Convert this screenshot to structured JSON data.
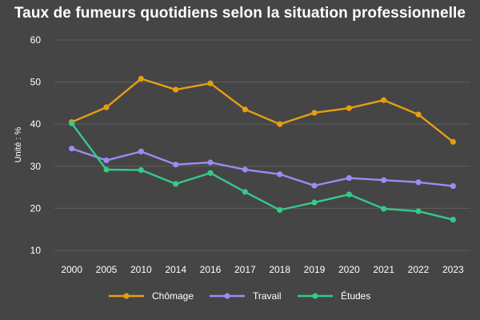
{
  "chart_data": {
    "type": "line",
    "title": "Taux de fumeurs quotidiens selon la situation professionnelle",
    "ylabel": "Unité : %",
    "xlabel": "",
    "categories": [
      "2000",
      "2005",
      "2010",
      "2014",
      "2016",
      "2017",
      "2018",
      "2019",
      "2020",
      "2021",
      "2022",
      "2023"
    ],
    "ylim": [
      10,
      60
    ],
    "yticks": [
      10,
      20,
      30,
      40,
      50,
      60
    ],
    "grid": true,
    "legend_position": "bottom",
    "series": [
      {
        "name": "Chômage",
        "color": "#e69f12",
        "values": [
          40.5,
          44.0,
          50.8,
          48.2,
          49.7,
          43.5,
          40.0,
          42.7,
          43.8,
          45.7,
          42.3,
          35.8
        ]
      },
      {
        "name": "Travail",
        "color": "#9b8cf2",
        "values": [
          34.2,
          31.4,
          33.5,
          30.4,
          30.9,
          29.2,
          28.1,
          25.4,
          27.2,
          26.7,
          26.2,
          25.3
        ]
      },
      {
        "name": "Études",
        "color": "#35c98a",
        "values": [
          40.2,
          29.2,
          29.1,
          25.8,
          28.4,
          23.9,
          19.6,
          21.4,
          23.3,
          19.9,
          19.3,
          17.3
        ]
      }
    ]
  }
}
